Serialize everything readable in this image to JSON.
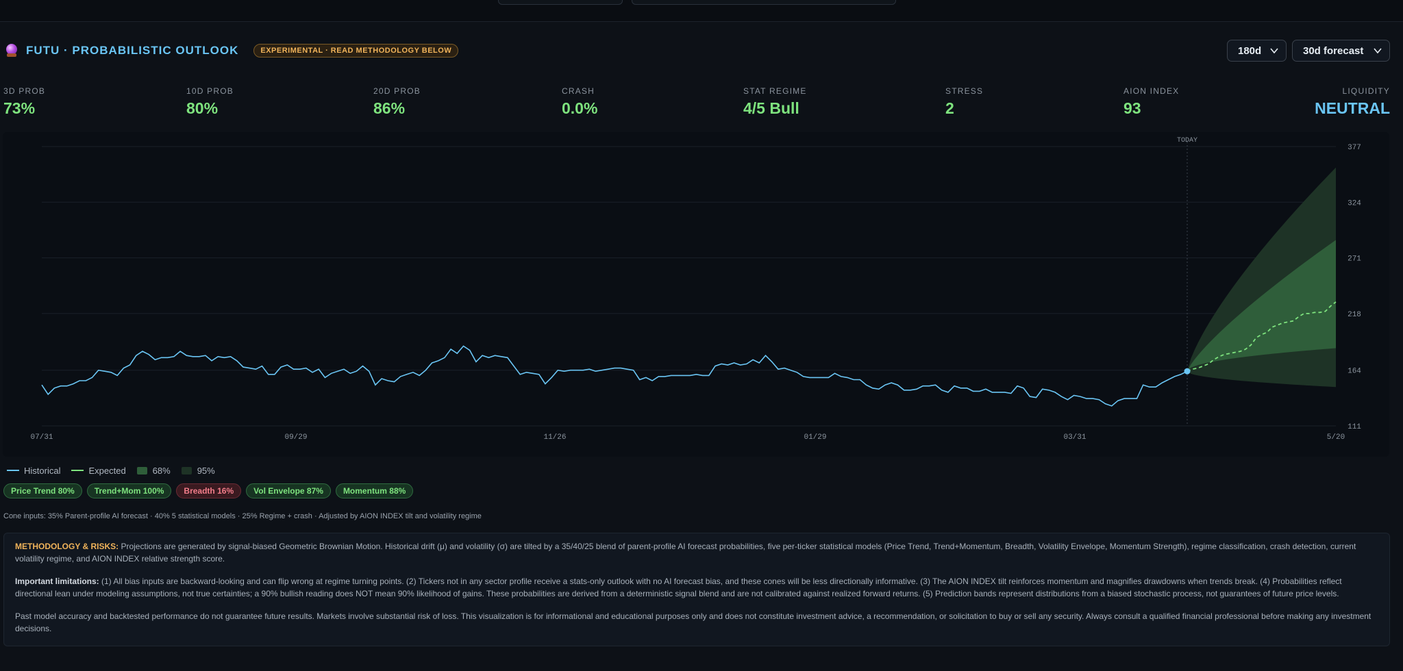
{
  "header": {
    "title": "FUTU · PROBABILISTIC OUTLOOK",
    "badge": "EXPERIMENTAL · READ METHODOLOGY BELOW",
    "lookback_select": "180d",
    "forecast_select": "30d forecast"
  },
  "metrics": [
    {
      "label": "3D PROB",
      "value": "73%"
    },
    {
      "label": "10D PROB",
      "value": "80%"
    },
    {
      "label": "20D PROB",
      "value": "86%"
    },
    {
      "label": "CRASH",
      "value": "0.0%"
    },
    {
      "label": "STAT REGIME",
      "value": "4/5 Bull"
    },
    {
      "label": "STRESS",
      "value": "2"
    },
    {
      "label": "AION INDEX",
      "value": "93"
    },
    {
      "label": "LIQUIDITY",
      "value": "NEUTRAL"
    }
  ],
  "chart_data": {
    "type": "line",
    "today_label": "TODAY",
    "x_ticks": [
      "07/31",
      "09/29",
      "11/26",
      "01/29",
      "03/31",
      "5/20"
    ],
    "y_ticks": [
      111,
      164,
      218,
      271,
      324,
      377
    ],
    "ylim": [
      111,
      377
    ],
    "series": [
      {
        "name": "Historical",
        "color": "#6ac5f4",
        "values": [
          150,
          141,
          147,
          149,
          149,
          151,
          154,
          154,
          157,
          164,
          163,
          162,
          159,
          166,
          169,
          178,
          182,
          179,
          174,
          176,
          176,
          177,
          182,
          178,
          177,
          177,
          178,
          173,
          177,
          176,
          177,
          173,
          167,
          166,
          165,
          168,
          160,
          160,
          167,
          169,
          165,
          165,
          166,
          162,
          165,
          157,
          161,
          163,
          165,
          161,
          163,
          168,
          163,
          150,
          156,
          154,
          153,
          158,
          160,
          162,
          159,
          164,
          171,
          173,
          176,
          184,
          180,
          187,
          183,
          172,
          178,
          176,
          178,
          177,
          176,
          168,
          160,
          162,
          161,
          160,
          151,
          157,
          164,
          163,
          164,
          164,
          164,
          165,
          163,
          164,
          165,
          166,
          166,
          165,
          164,
          155,
          157,
          154,
          158,
          158,
          159,
          159,
          159,
          159,
          160,
          159,
          159,
          168,
          170,
          169,
          171,
          169,
          170,
          174,
          171,
          178,
          172,
          165,
          166,
          164,
          162,
          158,
          157,
          157,
          157,
          157,
          161,
          158,
          157,
          155,
          155,
          150,
          147,
          146,
          150,
          152,
          150,
          145,
          145,
          146,
          149,
          149,
          150,
          145,
          143,
          149,
          147,
          147,
          144,
          144,
          146,
          143,
          143,
          143,
          142,
          149,
          147,
          139,
          138,
          146,
          145,
          143,
          139,
          136,
          140,
          139,
          137,
          137,
          136,
          132,
          130,
          135,
          137,
          137,
          137,
          150,
          148,
          148,
          152,
          155,
          158,
          160,
          163
        ]
      },
      {
        "name": "Expected",
        "color": "#7ee37e",
        "values": [
          163,
          165,
          166,
          168,
          170,
          174,
          177,
          179,
          180,
          181,
          182,
          184,
          188,
          195,
          198,
          200,
          205,
          207,
          209,
          210,
          211,
          215,
          218,
          218,
          219,
          219,
          220,
          225,
          229
        ]
      }
    ],
    "bands": [
      {
        "name": "68%",
        "color": "#2f5e3a",
        "upper_end": 288,
        "lower_end": 185
      },
      {
        "name": "95%",
        "color": "#1e3326",
        "upper_end": 357,
        "lower_end": 148
      }
    ]
  },
  "legend": [
    {
      "label": "Historical",
      "kind": "line",
      "color": "#6ac5f4"
    },
    {
      "label": "Expected",
      "kind": "line",
      "color": "#7ee37e"
    },
    {
      "label": "68%",
      "kind": "swatch",
      "color": "#2f5e3a"
    },
    {
      "label": "95%",
      "kind": "swatch",
      "color": "#1e3326"
    }
  ],
  "chips": [
    {
      "label": "Price Trend 80%",
      "tone": "good"
    },
    {
      "label": "Trend+Mom 100%",
      "tone": "good"
    },
    {
      "label": "Breadth 16%",
      "tone": "bad"
    },
    {
      "label": "Vol Envelope 87%",
      "tone": "good"
    },
    {
      "label": "Momentum 88%",
      "tone": "good"
    }
  ],
  "cone_inputs": "Cone inputs: 35% Parent-profile AI forecast · 40% 5 statistical models · 25% Regime + crash · Adjusted by AION INDEX tilt and volatility regime",
  "methodology": {
    "heading": "METHODOLOGY & RISKS:",
    "p1": "Projections are generated by signal-biased Geometric Brownian Motion. Historical drift (μ) and volatility (σ) are tilted by a 35/40/25 blend of parent-profile AI forecast probabilities, five per-ticker statistical models (Price Trend, Trend+Momentum, Breadth, Volatility Envelope, Momentum Strength), regime classification, crash detection, current volatility regime, and AION INDEX relative strength score.",
    "lim_heading": "Important limitations:",
    "p2": "(1) All bias inputs are backward-looking and can flip wrong at regime turning points. (2) Tickers not in any sector profile receive a stats-only outlook with no AI forecast bias, and these cones will be less directionally informative. (3) The AION INDEX tilt reinforces momentum and magnifies drawdowns when trends break. (4) Probabilities reflect directional lean under modeling assumptions, not true certainties; a 90% bullish reading does NOT mean 90% likelihood of gains. These probabilities are derived from a deterministic signal blend and are not calibrated against realized forward returns. (5) Prediction bands represent distributions from a biased stochastic process, not guarantees of future price levels.",
    "p3": "Past model accuracy and backtested performance do not guarantee future results. Markets involve substantial risk of loss. This visualization is for informational and educational purposes only and does not constitute investment advice, a recommendation, or solicitation to buy or sell any security. Always consult a qualified financial professional before making any investment decisions."
  }
}
